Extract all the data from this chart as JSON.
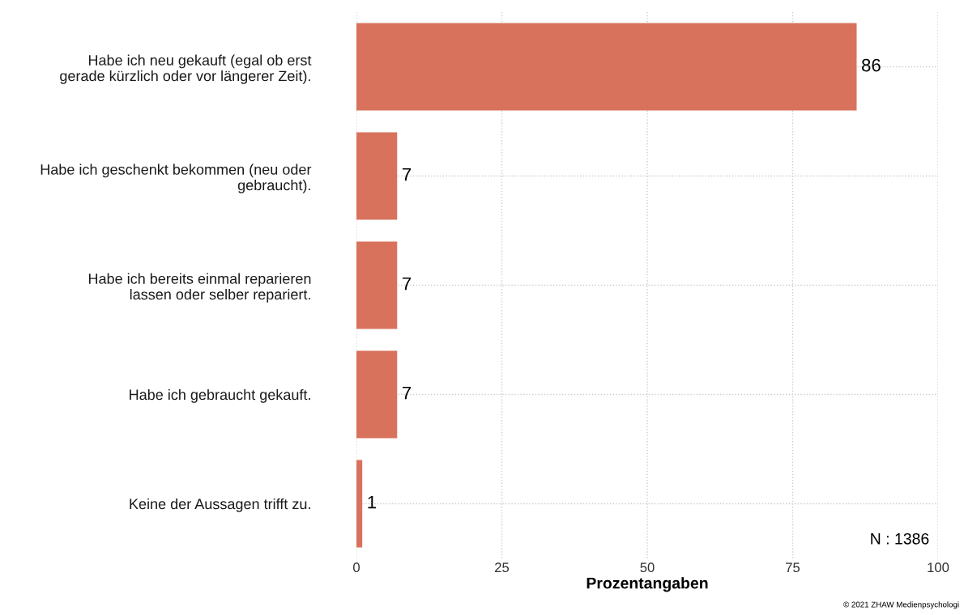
{
  "chart_data": {
    "type": "bar",
    "orientation": "horizontal",
    "categories": [
      "Habe ich neu gekauft (egal ob erst\ngerade kürzlich oder vor längerer Zeit).",
      "Habe ich geschenkt bekommen (neu oder\ngebraucht).",
      "Habe ich bereits einmal reparieren\nlassen oder selber repariert.",
      "Habe ich gebraucht gekauft.",
      "Keine der Aussagen trifft zu."
    ],
    "values": [
      86,
      7,
      7,
      7,
      1
    ],
    "color": "#d9725c",
    "xlim": [
      0,
      100
    ],
    "xticks": [
      0,
      25,
      50,
      75,
      100
    ],
    "xlabel": "Prozentangaben",
    "data_labels": true,
    "grid": true,
    "annotations": [
      "N : 1386",
      "© 2021 ZHAW Medienpsychologi"
    ]
  }
}
